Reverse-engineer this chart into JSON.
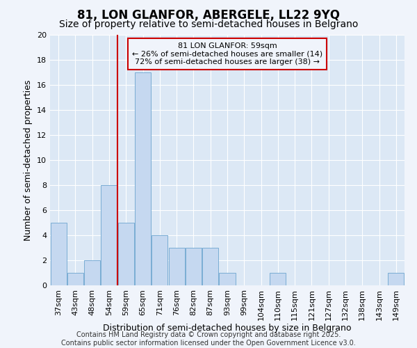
{
  "title": "81, LON GLANFOR, ABERGELE, LL22 9YQ",
  "subtitle": "Size of property relative to semi-detached houses in Belgrano",
  "xlabel": "Distribution of semi-detached houses by size in Belgrano",
  "ylabel": "Number of semi-detached properties",
  "categories": [
    "37sqm",
    "43sqm",
    "48sqm",
    "54sqm",
    "59sqm",
    "65sqm",
    "71sqm",
    "76sqm",
    "82sqm",
    "87sqm",
    "93sqm",
    "99sqm",
    "104sqm",
    "110sqm",
    "115sqm",
    "121sqm",
    "127sqm",
    "132sqm",
    "138sqm",
    "143sqm",
    "149sqm"
  ],
  "values": [
    5,
    1,
    2,
    8,
    5,
    17,
    4,
    3,
    3,
    3,
    1,
    0,
    0,
    1,
    0,
    0,
    0,
    0,
    0,
    0,
    1
  ],
  "bar_color": "#c5d8f0",
  "bar_edgecolor": "#7aadd4",
  "vline_x": 3.5,
  "vline_color": "#cc0000",
  "annotation_line1": "81 LON GLANFOR: 59sqm",
  "annotation_line2": "← 26% of semi-detached houses are smaller (14)",
  "annotation_line3": "72% of semi-detached houses are larger (38) →",
  "annotation_box_edgecolor": "#cc0000",
  "ylim": [
    0,
    20
  ],
  "yticks": [
    0,
    2,
    4,
    6,
    8,
    10,
    12,
    14,
    16,
    18,
    20
  ],
  "background_color": "#dce8f5",
  "plot_bg_color": "#dce8f5",
  "footer": "Contains HM Land Registry data © Crown copyright and database right 2025.\nContains public sector information licensed under the Open Government Licence v3.0.",
  "title_fontsize": 12,
  "subtitle_fontsize": 10,
  "axis_label_fontsize": 9,
  "tick_fontsize": 8,
  "annotation_fontsize": 8,
  "footer_fontsize": 7
}
